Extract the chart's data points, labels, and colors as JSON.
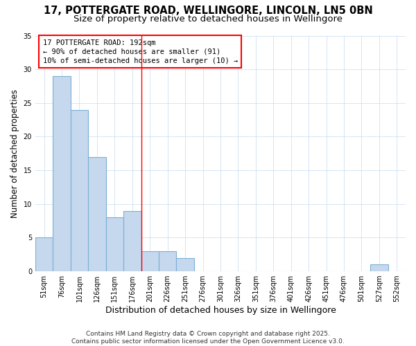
{
  "title": "17, POTTERGATE ROAD, WELLINGORE, LINCOLN, LN5 0BN",
  "subtitle": "Size of property relative to detached houses in Wellingore",
  "xlabel": "Distribution of detached houses by size in Wellingore",
  "ylabel": "Number of detached properties",
  "categories": [
    "51sqm",
    "76sqm",
    "101sqm",
    "126sqm",
    "151sqm",
    "176sqm",
    "201sqm",
    "226sqm",
    "251sqm",
    "276sqm",
    "301sqm",
    "326sqm",
    "351sqm",
    "376sqm",
    "401sqm",
    "426sqm",
    "451sqm",
    "476sqm",
    "501sqm",
    "527sqm",
    "552sqm"
  ],
  "values": [
    5,
    29,
    24,
    17,
    8,
    9,
    3,
    3,
    2,
    0,
    0,
    0,
    0,
    0,
    0,
    0,
    0,
    0,
    0,
    1,
    0
  ],
  "bar_color": "#c5d8ed",
  "bar_edge_color": "#7aafd4",
  "ref_line_x": 6.0,
  "ref_line_color": "red",
  "ylim": [
    0,
    35
  ],
  "yticks": [
    0,
    5,
    10,
    15,
    20,
    25,
    30,
    35
  ],
  "annotation_text": "17 POTTERGATE ROAD: 192sqm\n← 90% of detached houses are smaller (91)\n10% of semi-detached houses are larger (10) →",
  "annotation_box_color": "white",
  "annotation_box_edge": "red",
  "footer": "Contains HM Land Registry data © Crown copyright and database right 2025.\nContains public sector information licensed under the Open Government Licence v3.0.",
  "fig_background": "#ffffff",
  "axes_background": "#ffffff",
  "grid_color": "#d0dff0",
  "title_fontsize": 10.5,
  "subtitle_fontsize": 9.5,
  "tick_fontsize": 7,
  "ylabel_fontsize": 8.5,
  "xlabel_fontsize": 9,
  "annotation_fontsize": 7.5,
  "footer_fontsize": 6.5
}
